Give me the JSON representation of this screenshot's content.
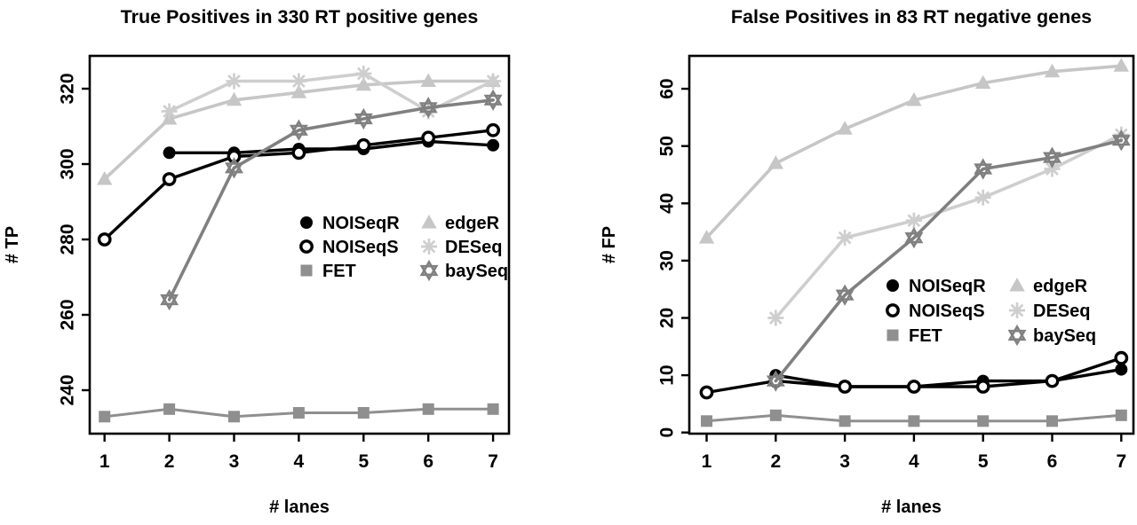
{
  "chart_data": {
    "type": "line",
    "legend_rows": [
      [
        "NOISeqR",
        "edgeR"
      ],
      [
        "NOISeqS",
        "DESeq"
      ],
      [
        "FET",
        "baySeq"
      ]
    ],
    "colors": {
      "black": "#000000",
      "fet_gray": "#8f8f8f",
      "bayseq_gray": "#808080",
      "edger_lightgray": "#c6c6c6",
      "deseq_lightgray": "#cecece",
      "background": "#ffffff"
    },
    "charts": [
      {
        "id": "tp",
        "title": "True Positives in 330 RT positive genes",
        "xlabel": "# lanes",
        "ylabel": "# TP",
        "x_ticks": [
          1,
          2,
          3,
          4,
          5,
          6,
          7
        ],
        "y_ticks": [
          240,
          260,
          280,
          300,
          320
        ],
        "ylim": [
          228,
          329
        ],
        "xlim": [
          0.76,
          7.24
        ],
        "grid": false,
        "legend_position": "center-right",
        "series": [
          {
            "name": "edgeR",
            "marker": "filled-triangle",
            "color": "#c6c6c6",
            "x": [
              1,
              2,
              3,
              4,
              5,
              6,
              7
            ],
            "values": [
              296,
              312,
              317,
              319,
              321,
              322,
              322
            ]
          },
          {
            "name": "DESeq",
            "marker": "asterisk",
            "color": "#cecece",
            "x": [
              2,
              3,
              4,
              5,
              6,
              7
            ],
            "values": [
              314,
              322,
              322,
              324,
              314,
              322
            ]
          },
          {
            "name": "FET",
            "marker": "filled-square",
            "color": "#8f8f8f",
            "x": [
              1,
              2,
              3,
              4,
              5,
              6,
              7
            ],
            "values": [
              233,
              235,
              233,
              234,
              234,
              235,
              235
            ]
          },
          {
            "name": "NOISeqR",
            "marker": "filled-circle",
            "color": "#000000",
            "x": [
              2,
              3,
              4,
              5,
              6,
              7
            ],
            "values": [
              303,
              303,
              304,
              304,
              306,
              305
            ]
          },
          {
            "name": "NOISeqS",
            "marker": "open-circle",
            "color": "#000000",
            "x": [
              1,
              2,
              3,
              4,
              5,
              6,
              7
            ],
            "values": [
              280,
              296,
              302,
              303,
              305,
              307,
              309
            ]
          },
          {
            "name": "baySeq",
            "marker": "hexagram",
            "color": "#808080",
            "x": [
              2,
              3,
              4,
              5,
              6,
              7
            ],
            "values": [
              264,
              299,
              309,
              312,
              315,
              317
            ]
          }
        ]
      },
      {
        "id": "fp",
        "title": "False Positives in 83 RT negative genes",
        "xlabel": "# lanes",
        "ylabel": "# FP",
        "x_ticks": [
          1,
          2,
          3,
          4,
          5,
          6,
          7
        ],
        "y_ticks": [
          0,
          10,
          20,
          30,
          40,
          50,
          60
        ],
        "ylim": [
          -0.5,
          66
        ],
        "xlim": [
          0.76,
          7.24
        ],
        "grid": false,
        "legend_position": "center-right",
        "series": [
          {
            "name": "edgeR",
            "marker": "filled-triangle",
            "color": "#c6c6c6",
            "x": [
              1,
              2,
              3,
              4,
              5,
              6,
              7
            ],
            "values": [
              34,
              47,
              53,
              58,
              61,
              63,
              64
            ]
          },
          {
            "name": "DESeq",
            "marker": "asterisk",
            "color": "#cecece",
            "x": [
              2,
              3,
              4,
              5,
              6,
              7
            ],
            "values": [
              20,
              34,
              37,
              41,
              46,
              52
            ]
          },
          {
            "name": "FET",
            "marker": "filled-square",
            "color": "#8f8f8f",
            "x": [
              1,
              2,
              3,
              4,
              5,
              6,
              7
            ],
            "values": [
              2,
              3,
              2,
              2,
              2,
              2,
              3
            ]
          },
          {
            "name": "NOISeqR",
            "marker": "filled-circle",
            "color": "#000000",
            "x": [
              2,
              3,
              4,
              5,
              6,
              7
            ],
            "values": [
              10,
              8,
              8,
              9,
              9,
              11
            ]
          },
          {
            "name": "NOISeqS",
            "marker": "open-circle",
            "color": "#000000",
            "x": [
              1,
              2,
              3,
              4,
              5,
              6,
              7
            ],
            "values": [
              7,
              9,
              8,
              8,
              8,
              9,
              13
            ]
          },
          {
            "name": "baySeq",
            "marker": "hexagram",
            "color": "#808080",
            "x": [
              2,
              3,
              4,
              5,
              6,
              7
            ],
            "values": [
              9,
              24,
              34,
              46,
              48,
              51
            ]
          }
        ]
      }
    ]
  }
}
